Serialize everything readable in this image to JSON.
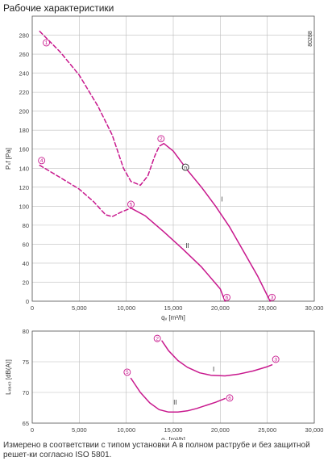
{
  "title": "Рабочие характеристики",
  "footnote": "Измерено в соответствии с типом установки A в полном раструбе и без защитной решет-ки согласно ISO 5801.",
  "colors": {
    "curve": "#c8188d",
    "grid": "#bdbdbd",
    "axis": "#555555"
  },
  "chart_data": [
    {
      "type": "line",
      "code": "80288",
      "ylabel": "Pₛf [Pa]",
      "xlabel": "qᵥ [m³/h]",
      "xlim": [
        0,
        30000
      ],
      "ylim": [
        0,
        300
      ],
      "xticks": [
        0,
        5000,
        10000,
        15000,
        20000,
        25000,
        30000
      ],
      "xtick_labels": [
        "0",
        "5,000",
        "10,000",
        "15,000",
        "20,000",
        "25,000",
        "30,000"
      ],
      "yticks": [
        0,
        20,
        40,
        60,
        80,
        100,
        120,
        140,
        160,
        180,
        200,
        220,
        240,
        260,
        280
      ],
      "ytick_labels": [
        "0",
        "20",
        "40",
        "60",
        "80",
        "100",
        "120",
        "140",
        "160",
        "180",
        "200",
        "220",
        "240",
        "260",
        "280"
      ],
      "series": [
        {
          "name": "I",
          "dashed": [
            [
              800,
              284
            ],
            [
              3000,
              262
            ],
            [
              5000,
              238
            ],
            [
              7000,
              205
            ],
            [
              8500,
              175
            ],
            [
              9700,
              140
            ],
            [
              10500,
              126
            ],
            [
              11500,
              122
            ],
            [
              12300,
              132
            ],
            [
              13000,
              152
            ],
            [
              13500,
              163
            ],
            [
              14000,
              166
            ]
          ],
          "solid": [
            [
              14000,
              166
            ],
            [
              15000,
              158
            ],
            [
              16500,
              138
            ],
            [
              18000,
              120
            ],
            [
              19500,
              100
            ],
            [
              21000,
              78
            ],
            [
              22500,
              52
            ],
            [
              24000,
              26
            ],
            [
              25300,
              0
            ]
          ]
        },
        {
          "name": "II",
          "dashed": [
            [
              800,
              143
            ],
            [
              3000,
              130
            ],
            [
              5000,
              118
            ],
            [
              6500,
              105
            ],
            [
              7800,
              91
            ],
            [
              8500,
              89
            ],
            [
              9500,
              94
            ],
            [
              10500,
              98
            ]
          ],
          "solid": [
            [
              10500,
              98
            ],
            [
              12000,
              90
            ],
            [
              14000,
              73
            ],
            [
              16000,
              55
            ],
            [
              18000,
              36
            ],
            [
              20000,
              13
            ],
            [
              20500,
              0
            ]
          ]
        }
      ],
      "markers": [
        {
          "label": "1",
          "x": 1500,
          "y": 272
        },
        {
          "label": "2",
          "x": 13700,
          "y": 171
        },
        {
          "label": "3",
          "x": 25500,
          "y": 4
        },
        {
          "label": "4",
          "x": 1000,
          "y": 148
        },
        {
          "label": "5",
          "x": 10500,
          "y": 102
        },
        {
          "label": "6",
          "x": 20700,
          "y": 4
        }
      ],
      "op_point": {
        "label": "n",
        "x": 16300,
        "y": 141
      },
      "curve_labels": [
        {
          "label": "I",
          "x": 20200,
          "y": 105
        },
        {
          "label": "II",
          "x": 16500,
          "y": 56
        }
      ]
    },
    {
      "type": "line",
      "ylabel": "Lᵥₐ₄₃ [dB(A)]",
      "xlabel": "qᵥ [m³/h]",
      "xlim": [
        0,
        30000
      ],
      "ylim": [
        65,
        80
      ],
      "xticks": [
        0,
        5000,
        10000,
        15000,
        20000,
        25000,
        30000
      ],
      "xtick_labels": [
        "0",
        "5,000",
        "10,000",
        "15,000",
        "20,000",
        "25,000",
        "30,000"
      ],
      "yticks": [
        65,
        70,
        75,
        80
      ],
      "ytick_labels": [
        "65",
        "70",
        "75",
        "80"
      ],
      "series": [
        {
          "name": "I",
          "solid": [
            [
              13800,
              78.4
            ],
            [
              14500,
              76.8
            ],
            [
              15500,
              75.2
            ],
            [
              16500,
              74.1
            ],
            [
              17800,
              73.2
            ],
            [
              19000,
              72.8
            ],
            [
              20500,
              72.7
            ],
            [
              22000,
              73.0
            ],
            [
              23500,
              73.5
            ],
            [
              25000,
              74.2
            ],
            [
              25500,
              74.5
            ]
          ]
        },
        {
          "name": "II",
          "solid": [
            [
              10500,
              72.3
            ],
            [
              11500,
              70.0
            ],
            [
              12500,
              68.3
            ],
            [
              13500,
              67.2
            ],
            [
              14500,
              66.8
            ],
            [
              15500,
              66.8
            ],
            [
              16500,
              67.0
            ],
            [
              17500,
              67.4
            ],
            [
              18500,
              67.9
            ],
            [
              19500,
              68.4
            ],
            [
              20500,
              69.0
            ]
          ]
        }
      ],
      "markers": [
        {
          "label": "2",
          "x": 13300,
          "y": 78.8
        },
        {
          "label": "3",
          "x": 25900,
          "y": 75.4
        },
        {
          "label": "5",
          "x": 10100,
          "y": 73.3
        },
        {
          "label": "6",
          "x": 21000,
          "y": 69.1
        }
      ],
      "curve_labels": [
        {
          "label": "I",
          "x": 19300,
          "y": 73.4
        },
        {
          "label": "II",
          "x": 15200,
          "y": 68.0
        }
      ]
    }
  ]
}
